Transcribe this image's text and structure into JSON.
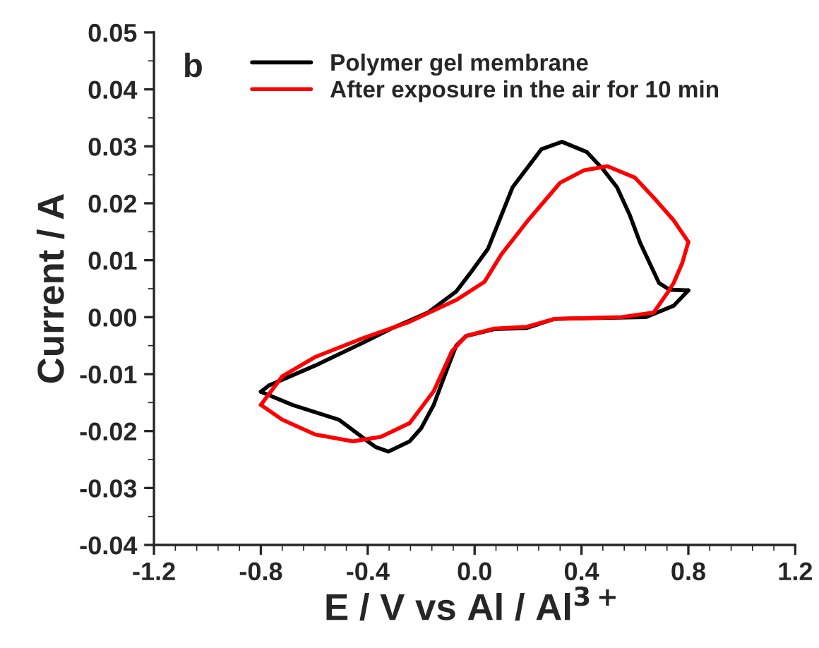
{
  "chart_data": {
    "type": "line",
    "xlabel": "E / V vs Al / Al$^{3+}$",
    "ylabel": "Current / A",
    "annotations": [
      "b"
    ],
    "series": [
      {
        "name": "Polymer gel membrane",
        "color": "#000000",
        "x": [
          -0.8,
          -0.77,
          -0.597,
          -0.418,
          -0.312,
          -0.175,
          -0.069,
          -0.02,
          0.05,
          0.142,
          0.25,
          0.327,
          0.42,
          0.48,
          0.533,
          0.58,
          0.62,
          0.69,
          0.73,
          0.8
        ],
        "values": [
          -0.0131,
          -0.012,
          -0.0085,
          -0.0045,
          -0.002,
          0.0008,
          0.0045,
          0.0075,
          0.012,
          0.0228,
          0.0295,
          0.0308,
          0.029,
          0.026,
          0.0228,
          0.018,
          0.013,
          0.006,
          0.0048,
          0.0047
        ]
      },
      {
        "color": "#000000",
        "x": [
          0.8,
          0.745,
          0.64,
          0.3,
          0.195,
          0.074,
          -0.032,
          -0.069,
          -0.11,
          -0.153,
          -0.2,
          -0.243,
          -0.323,
          -0.37,
          -0.4,
          -0.508,
          -0.682,
          -0.8
        ],
        "values": [
          0.0047,
          0.002,
          0.0,
          -0.0003,
          -0.0019,
          -0.0021,
          -0.0033,
          -0.005,
          -0.01,
          -0.0154,
          -0.0195,
          -0.0218,
          -0.0236,
          -0.0228,
          -0.0218,
          -0.018,
          -0.0154,
          -0.0131
        ]
      },
      {
        "name": "After exposure in the air for 10 min",
        "color": "#ff0000",
        "x": [
          -0.8,
          -0.72,
          -0.597,
          -0.418,
          -0.243,
          -0.069,
          0.037,
          0.1,
          0.2,
          0.32,
          0.41,
          0.497,
          0.6,
          0.67,
          0.745,
          0.8
        ],
        "values": [
          -0.0154,
          -0.0104,
          -0.007,
          -0.0037,
          -0.0008,
          0.003,
          0.0062,
          0.011,
          0.017,
          0.0236,
          0.0258,
          0.0265,
          0.0245,
          0.021,
          0.017,
          0.0132
        ]
      },
      {
        "color": "#ff0000",
        "x": [
          0.8,
          0.777,
          0.745,
          0.725,
          0.67,
          0.55,
          0.3,
          0.195,
          0.074,
          -0.032,
          -0.085,
          -0.153,
          -0.243,
          -0.35,
          -0.455,
          -0.597,
          -0.72,
          -0.8
        ],
        "values": [
          0.0132,
          0.0095,
          0.006,
          0.0045,
          0.0008,
          0.0,
          -0.0003,
          -0.0017,
          -0.002,
          -0.0033,
          -0.006,
          -0.013,
          -0.0186,
          -0.021,
          -0.0218,
          -0.0206,
          -0.018,
          -0.0154
        ]
      }
    ],
    "xlim": [
      -1.2,
      1.2
    ],
    "ylim": [
      -0.04,
      0.05
    ],
    "xticks": [
      {
        "value": -1.2,
        "label": "-1.2"
      },
      {
        "value": -0.8,
        "label": "-0.8"
      },
      {
        "value": -0.4,
        "label": "-0.4"
      },
      {
        "value": 0.0,
        "label": "0.0"
      },
      {
        "value": 0.4,
        "label": "0.4"
      },
      {
        "value": 0.8,
        "label": "0.8"
      },
      {
        "value": 1.2,
        "label": "1.2"
      }
    ],
    "yticks": [
      {
        "value": -0.04,
        "label": "-0.04"
      },
      {
        "value": -0.03,
        "label": "-0.03"
      },
      {
        "value": -0.02,
        "label": "-0.02"
      },
      {
        "value": -0.01,
        "label": "-0.01"
      },
      {
        "value": 0.0,
        "label": "0.00"
      },
      {
        "value": 0.01,
        "label": "0.01"
      },
      {
        "value": 0.02,
        "label": "0.02"
      },
      {
        "value": 0.03,
        "label": "0.03"
      },
      {
        "value": 0.04,
        "label": "0.04"
      },
      {
        "value": 0.05,
        "label": "0.05"
      }
    ],
    "grid": false,
    "legend": "top",
    "line_style": "solid",
    "marker": "none"
  }
}
